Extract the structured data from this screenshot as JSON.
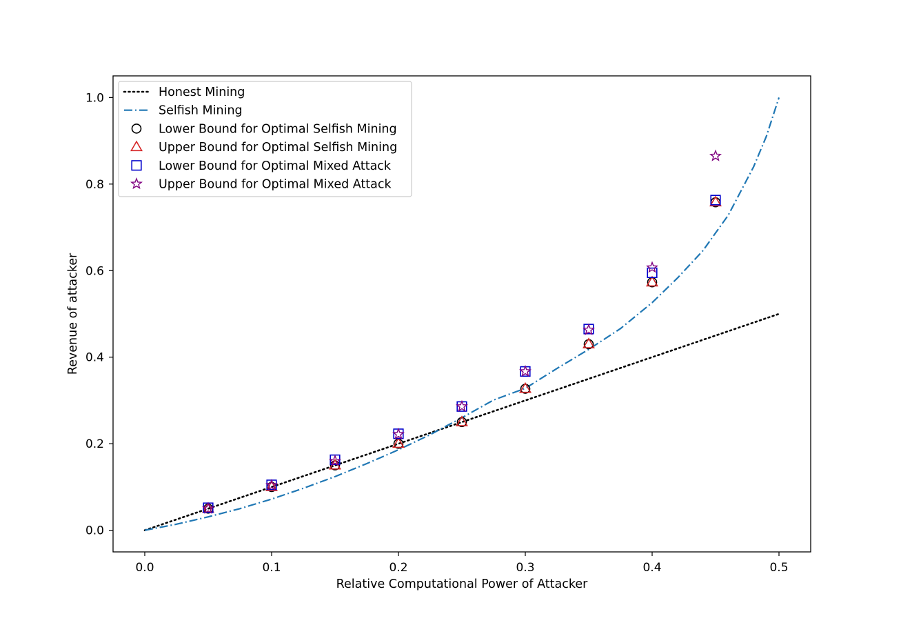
{
  "chart_data": {
    "type": "scatter",
    "title": "",
    "xlabel": "Relative Computational Power of Attacker",
    "ylabel": "Revenue of attacker",
    "xlim": [
      -0.025,
      0.525
    ],
    "ylim": [
      -0.05,
      1.05
    ],
    "x_ticks": [
      0.0,
      0.1,
      0.2,
      0.3,
      0.4,
      0.5
    ],
    "x_tick_labels": [
      "0.0",
      "0.1",
      "0.2",
      "0.3",
      "0.4",
      "0.5"
    ],
    "y_ticks": [
      0.0,
      0.2,
      0.4,
      0.6,
      0.8,
      1.0
    ],
    "y_tick_labels": [
      "0.0",
      "0.2",
      "0.4",
      "0.6",
      "0.8",
      "1.0"
    ],
    "grid": false,
    "legend_position": "top-left",
    "series": [
      {
        "name": "Honest Mining",
        "kind": "line",
        "style": "dotted",
        "color": "#000000",
        "x": [
          0.0,
          0.5
        ],
        "y": [
          0.0,
          0.5
        ]
      },
      {
        "name": "Selfish Mining",
        "kind": "line",
        "style": "dashdot",
        "color": "#1f77b4",
        "x": [
          0.0,
          0.025,
          0.05,
          0.075,
          0.1,
          0.125,
          0.15,
          0.175,
          0.2,
          0.225,
          0.25,
          0.275,
          0.3,
          0.325,
          0.35,
          0.375,
          0.4,
          0.42,
          0.44,
          0.46,
          0.48,
          0.49,
          0.5
        ],
        "y": [
          0.0,
          0.014,
          0.031,
          0.05,
          0.072,
          0.097,
          0.124,
          0.154,
          0.186,
          0.221,
          0.26,
          0.301,
          0.328,
          0.374,
          0.418,
          0.466,
          0.526,
          0.583,
          0.646,
          0.728,
          0.84,
          0.91,
          1.0
        ]
      },
      {
        "name": "Lower Bound for Optimal Selfish Mining",
        "kind": "marker",
        "marker": "circle",
        "color": "#000000",
        "x": [
          0.05,
          0.1,
          0.15,
          0.2,
          0.25,
          0.3,
          0.35,
          0.4,
          0.45
        ],
        "y": [
          0.05,
          0.1,
          0.15,
          0.2,
          0.25,
          0.327,
          0.43,
          0.573,
          0.758
        ]
      },
      {
        "name": "Upper Bound for Optimal Selfish Mining",
        "kind": "marker",
        "marker": "triangle",
        "color": "#d62728",
        "x": [
          0.05,
          0.1,
          0.15,
          0.2,
          0.25,
          0.3,
          0.35,
          0.4,
          0.45
        ],
        "y": [
          0.05,
          0.1,
          0.15,
          0.2,
          0.25,
          0.327,
          0.43,
          0.573,
          0.758
        ]
      },
      {
        "name": "Lower Bound for Optimal Mixed Attack",
        "kind": "marker",
        "marker": "square",
        "color": "#0000cc",
        "x": [
          0.05,
          0.1,
          0.15,
          0.2,
          0.25,
          0.3,
          0.35,
          0.4,
          0.45
        ],
        "y": [
          0.052,
          0.105,
          0.163,
          0.223,
          0.286,
          0.367,
          0.465,
          0.595,
          0.763
        ]
      },
      {
        "name": "Upper Bound for Optimal Mixed Attack",
        "kind": "marker",
        "marker": "star",
        "color": "#800080",
        "x": [
          0.05,
          0.1,
          0.15,
          0.2,
          0.25,
          0.3,
          0.35,
          0.4,
          0.45
        ],
        "y": [
          0.05,
          0.104,
          0.16,
          0.222,
          0.286,
          0.367,
          0.463,
          0.607,
          0.865
        ]
      }
    ]
  }
}
